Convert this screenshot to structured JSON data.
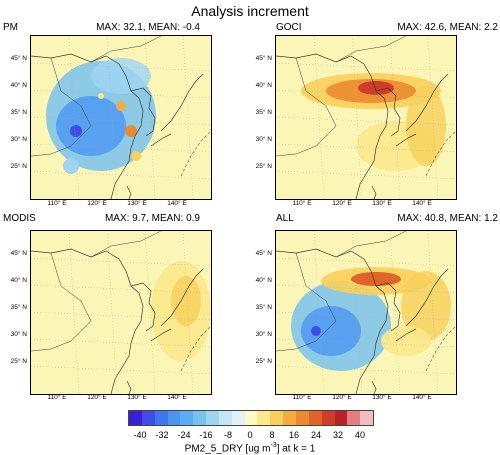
{
  "title": "Analysis increment",
  "panels": [
    {
      "label": "PM",
      "stats": "MAX: 32.1, MEAN: -0.4",
      "lat_labels": [
        "45° N",
        "40° N",
        "35° N",
        "30° N",
        "25° N"
      ],
      "lon_labels": []
    },
    {
      "label": "GOCI",
      "stats": "MAX: 42.6, MEAN: 2.2",
      "lat_labels": [
        "45° N",
        "40° N",
        "35° N",
        "30° N",
        "25° N"
      ],
      "lon_labels": [
        "110° E",
        "120° E",
        "130° E",
        "140° E"
      ]
    },
    {
      "label": "MODIS",
      "stats": "MAX: 9.7, MEAN: 0.9",
      "lat_labels": [
        "45° N",
        "40° N",
        "35° N",
        "30° N",
        "25° N"
      ],
      "lon_labels": []
    },
    {
      "label": "ALL",
      "stats": "MAX: 40.8, MEAN: 1.2",
      "lat_labels": [
        "45° N",
        "40° N",
        "35° N",
        "30° N",
        "25° N"
      ],
      "lon_labels": [
        "110° E",
        "120° E",
        "130° E",
        "140° E"
      ]
    }
  ],
  "top_lon_labels": [
    "110° E",
    "120° E",
    "130° E",
    "140° E"
  ],
  "bottom_lon_labels": [
    "110° E",
    "120° E",
    "130° E",
    "140° E"
  ],
  "colorbar": {
    "ticks": [
      "-40",
      "-32",
      "-24",
      "-16",
      "-8",
      "0",
      "8",
      "16",
      "24",
      "32",
      "40"
    ],
    "title": "PM2_5_DRY [ug m",
    "title_sup": "-3",
    "title_tail": "] at k = 1",
    "colors": [
      "#3b1fd6",
      "#3d4ee8",
      "#3f74f0",
      "#4b95f2",
      "#5aaef0",
      "#78c2ef",
      "#9fd4f2",
      "#c3e5f6",
      "#e2f1f5",
      "#fdf9c4",
      "#fbe98b",
      "#f8cf5a",
      "#f3ad3e",
      "#ec8a2e",
      "#e0632a",
      "#cf3d28",
      "#b8222a",
      "#e37f7f",
      "#f4bcbc"
    ]
  },
  "colors": {
    "background_map": "#fbf6b6",
    "land_border": "#3a3a3a"
  }
}
